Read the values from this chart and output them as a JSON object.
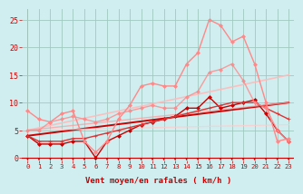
{
  "title": "",
  "xlabel": "Vent moyen/en rafales ( km/h )",
  "ylabel": "",
  "bg_color": "#d0eef0",
  "grid_color": "#a0c8c0",
  "xlim": [
    -0.5,
    23.5
  ],
  "ylim": [
    -0.5,
    27
  ],
  "yticks": [
    0,
    5,
    10,
    15,
    20,
    25
  ],
  "xticks": [
    0,
    1,
    2,
    3,
    4,
    5,
    6,
    7,
    8,
    9,
    10,
    11,
    12,
    13,
    14,
    15,
    16,
    17,
    18,
    19,
    20,
    21,
    22,
    23
  ],
  "lines": [
    {
      "comment": "dark red line with diamond markers - goes low then rises to ~10, drops at end",
      "x": [
        0,
        1,
        2,
        3,
        4,
        5,
        6,
        7,
        8,
        9,
        10,
        11,
        12,
        13,
        14,
        15,
        16,
        17,
        18,
        19,
        20,
        21,
        22,
        23
      ],
      "y": [
        4,
        2.5,
        2.5,
        2.5,
        3,
        3,
        0,
        3,
        4,
        5,
        6,
        6.5,
        7,
        7.5,
        9,
        9,
        11,
        9,
        9.5,
        10,
        10.5,
        8,
        5,
        3
      ],
      "color": "#cc0000",
      "lw": 1.0,
      "marker": "D",
      "ms": 2.0,
      "alpha": 1.0
    },
    {
      "comment": "dark red straight reference line - nearly linear from ~4 to ~10",
      "x": [
        0,
        23
      ],
      "y": [
        4,
        10
      ],
      "color": "#cc0000",
      "lw": 1.4,
      "marker": null,
      "ms": 0,
      "alpha": 1.0
    },
    {
      "comment": "medium dark red line with small markers - rises steadily",
      "x": [
        0,
        1,
        2,
        3,
        4,
        5,
        6,
        7,
        8,
        9,
        10,
        11,
        12,
        13,
        14,
        15,
        16,
        17,
        18,
        19,
        20,
        21,
        22,
        23
      ],
      "y": [
        4,
        3,
        3,
        3,
        3.5,
        3.5,
        4,
        4.5,
        5,
        5.5,
        6,
        6.5,
        7,
        7.5,
        8,
        8.5,
        9,
        9.5,
        10,
        10,
        10,
        9,
        8,
        7
      ],
      "color": "#dd3333",
      "lw": 1.0,
      "marker": "+",
      "ms": 3.0,
      "alpha": 1.0
    },
    {
      "comment": "pink line with diamonds - big spike at x=16 to 25, then drops",
      "x": [
        0,
        1,
        2,
        3,
        4,
        5,
        6,
        7,
        8,
        9,
        10,
        11,
        12,
        13,
        14,
        15,
        16,
        17,
        18,
        19,
        20,
        21,
        22,
        23
      ],
      "y": [
        8.5,
        7,
        6.5,
        8,
        8.5,
        3,
        1,
        3,
        7,
        9.5,
        13,
        13.5,
        13,
        13,
        17,
        19,
        25,
        24,
        21,
        22,
        17,
        10,
        3,
        3.5
      ],
      "color": "#ff8888",
      "lw": 1.0,
      "marker": "D",
      "ms": 2.0,
      "alpha": 1.0
    },
    {
      "comment": "medium pink with diamonds - rises from 5 to 17 then drops",
      "x": [
        0,
        1,
        2,
        3,
        4,
        5,
        6,
        7,
        8,
        9,
        10,
        11,
        12,
        13,
        14,
        15,
        16,
        17,
        18,
        19,
        20,
        21,
        22,
        23
      ],
      "y": [
        5,
        5,
        6.5,
        7,
        7.5,
        7,
        6.5,
        7,
        8,
        8.5,
        9,
        9.5,
        9,
        9,
        11,
        12,
        15.5,
        16,
        17,
        14,
        10,
        9,
        5,
        3
      ],
      "color": "#ff8888",
      "lw": 1.0,
      "marker": "D",
      "ms": 2.0,
      "alpha": 0.8
    },
    {
      "comment": "light pink nearly straight reference line",
      "x": [
        0,
        23
      ],
      "y": [
        5,
        15
      ],
      "color": "#ffbbbb",
      "lw": 1.2,
      "marker": null,
      "ms": 0,
      "alpha": 0.9
    },
    {
      "comment": "very light pink horizontal-ish low line",
      "x": [
        0,
        23
      ],
      "y": [
        5,
        6
      ],
      "color": "#ffcccc",
      "lw": 0.9,
      "marker": null,
      "ms": 0,
      "alpha": 0.8
    },
    {
      "comment": "medium pink straight reference line - from 5 to 10",
      "x": [
        0,
        23
      ],
      "y": [
        5,
        10
      ],
      "color": "#ff9999",
      "lw": 1.0,
      "marker": null,
      "ms": 0,
      "alpha": 0.7
    }
  ],
  "arrow_color": "#cc0000",
  "xlabel_color": "#cc0000",
  "tick_color": "#cc0000",
  "xlabel_fontsize": 6.5,
  "ytick_fontsize": 6,
  "xtick_fontsize": 5.2
}
